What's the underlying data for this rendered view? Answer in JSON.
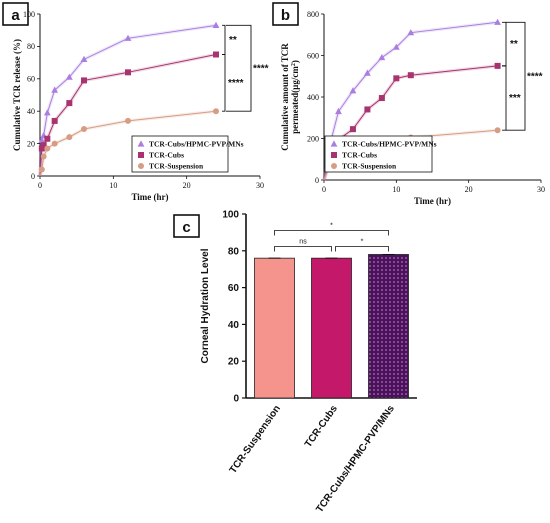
{
  "panels": {
    "a": "a",
    "b": "b",
    "c": "c"
  },
  "chart_data": [
    {
      "type": "line",
      "panel": "a",
      "xlabel": "Time (hr)",
      "ylabel": "Cumulative TCR release (%)",
      "xlim": [
        0,
        30
      ],
      "ylim": [
        0,
        100
      ],
      "xticks": [
        0,
        10,
        20,
        30
      ],
      "yticks": [
        0,
        20,
        40,
        60,
        80,
        100
      ],
      "series": [
        {
          "name": "TCR-Cubs/HPMC-PVP/MNs",
          "color": "#a97ee0",
          "marker": "triangle",
          "x": [
            0,
            0.25,
            0.5,
            1,
            2,
            4,
            6,
            12,
            24
          ],
          "y": [
            0,
            22,
            25,
            39,
            53,
            61,
            72,
            85,
            93
          ]
        },
        {
          "name": "TCR-Cubs",
          "color": "#a8336f",
          "marker": "square",
          "x": [
            0,
            0.25,
            0.5,
            1,
            2,
            4,
            6,
            12,
            24
          ],
          "y": [
            0,
            17,
            19,
            23,
            34,
            45,
            59,
            64,
            75
          ]
        },
        {
          "name": "TCR-Suspension",
          "color": "#d69c84",
          "marker": "circle",
          "x": [
            0,
            0.25,
            0.5,
            1,
            2,
            4,
            6,
            12,
            24
          ],
          "y": [
            0,
            4,
            12,
            17,
            20,
            24,
            29,
            34,
            40
          ]
        }
      ],
      "annotations": [
        "**",
        "****",
        "****"
      ]
    },
    {
      "type": "line",
      "panel": "b",
      "xlabel": "Time (hr)",
      "ylabel": "Cumulative amount of TCR permeated(µg/cm²)",
      "ylabel_lines": [
        "Cumulative amount of TCR",
        "permeated(µg/cm"
      ],
      "ylabel_sup": "2",
      "xlim": [
        0,
        30
      ],
      "ylim": [
        0,
        800
      ],
      "xticks": [
        0,
        10,
        20,
        30
      ],
      "yticks": [
        0,
        200,
        400,
        600,
        800
      ],
      "series": [
        {
          "name": "TCR-Cubs/HPMC-PVP/MNs",
          "color": "#a97ee0",
          "marker": "triangle",
          "x": [
            0,
            1,
            2,
            4,
            6,
            8,
            10,
            12,
            24
          ],
          "y": [
            0,
            195,
            330,
            430,
            515,
            590,
            640,
            710,
            760
          ]
        },
        {
          "name": "TCR-Cubs",
          "color": "#a8336f",
          "marker": "square",
          "x": [
            0,
            1,
            2,
            4,
            6,
            8,
            10,
            12,
            24
          ],
          "y": [
            0,
            112,
            195,
            245,
            340,
            395,
            490,
            505,
            550
          ]
        },
        {
          "name": "TCR-Suspension",
          "color": "#d69c84",
          "marker": "circle",
          "x": [
            0,
            1,
            2,
            4,
            6,
            8,
            10,
            12,
            24
          ],
          "y": [
            0,
            95,
            108,
            140,
            155,
            175,
            190,
            205,
            240
          ]
        }
      ],
      "annotations": [
        "**",
        "***",
        "****"
      ]
    },
    {
      "type": "bar",
      "panel": "c",
      "ylabel": "Corneal Hydration Level",
      "ylim": [
        0,
        100
      ],
      "yticks": [
        0,
        20,
        40,
        60,
        80,
        100
      ],
      "categories": [
        "TCR-Suspension",
        "TCR-Cubs",
        "TCR-Cubs/HPMC-PVP/MNs"
      ],
      "values": [
        76,
        76,
        78
      ],
      "colors": [
        "#f4948c",
        "#c4196a",
        "#5b1a6b"
      ],
      "patterns": [
        "solid",
        "solid",
        "dotted"
      ],
      "significance": [
        {
          "from": 0,
          "to": 1,
          "label": "ns"
        },
        {
          "from": 1,
          "to": 2,
          "label": "*"
        },
        {
          "from": 0,
          "to": 2,
          "label": "*"
        }
      ]
    }
  ]
}
